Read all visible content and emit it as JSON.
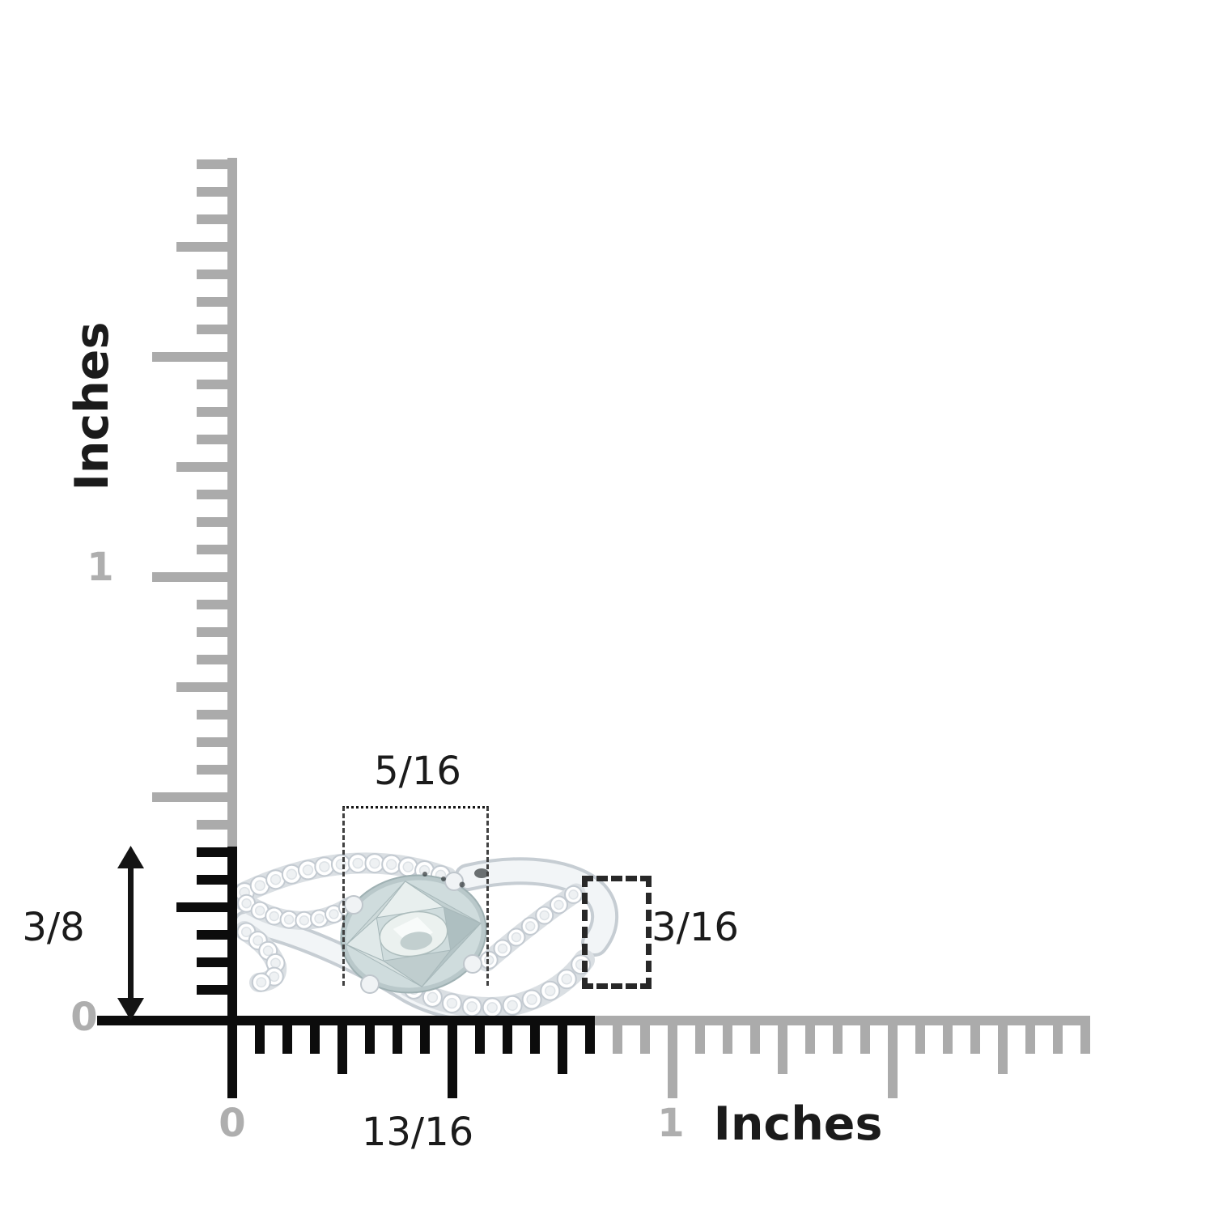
{
  "rulers": {
    "vertical": {
      "unit_label": "Inches",
      "zero_label": "0",
      "one_label": "1"
    },
    "horizontal": {
      "unit_label": "Inches",
      "zero_label": "0",
      "one_label": "1"
    }
  },
  "measurements": {
    "ring_width": {
      "label": "13/16",
      "unit": "inches"
    },
    "ring_height": {
      "label": "3/8",
      "unit": "inches"
    },
    "stone_width": {
      "label": "5/16",
      "unit": "inches"
    },
    "band_height": {
      "label": "3/16",
      "unit": "inches"
    }
  },
  "colors": {
    "ruler_gray": "#ababab",
    "ruler_black": "#0c0c0c",
    "numeral_gray": "#aeaeae",
    "text_dark": "#1b1b1b",
    "metal_fill": "#f2f5f7",
    "metal_edge": "#c6cdd3",
    "pave_base": "#dadfe3",
    "diamond_fill": "#ffffff",
    "diamond_stroke": "#c3cad1",
    "stone_rim": "#9fb1b3",
    "stone_fill": "#cfdcdd",
    "stone_table": "#ebf1ef"
  }
}
